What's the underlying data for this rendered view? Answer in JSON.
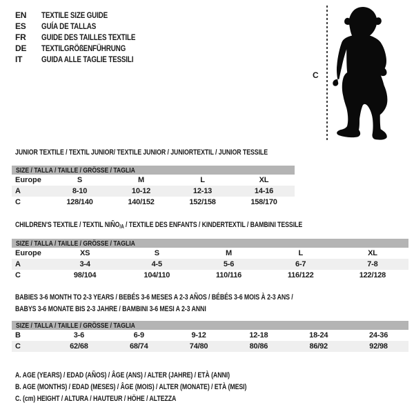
{
  "colors": {
    "text": "#1a1a1a",
    "table_header_bg": "#b4b4b4",
    "row_alt_bg": "#efefef",
    "silhouette": "#0a0a0a",
    "dash_line": "#3a3a3a"
  },
  "languages": [
    {
      "code": "EN",
      "label": "TEXTILE SIZE GUIDE"
    },
    {
      "code": "ES",
      "label": "GUÍA DE TALLAS"
    },
    {
      "code": "FR",
      "label": "GUIDE DES TAILLES TEXTILE"
    },
    {
      "code": "DE",
      "label": "TEXTILGRÖßENFÜHRUNG"
    },
    {
      "code": "IT",
      "label": "GUIDA ALLE TAGLIE TESSILI"
    }
  ],
  "figure": {
    "measure_label": "C",
    "silhouette": "toddler-standing"
  },
  "sections": [
    {
      "heading": {
        "pre": "JUNIOR TEXTILE / TEXTIL JUNIOR/ TEXTILE JUNIOR / JUNIORTEXTIL / JUNIOR TESSILE",
        "sub": "",
        "post": ""
      },
      "table": {
        "size_header": "SIZE / TALLA / TAILLE / GRÖSSE / TAGLIA",
        "rows": [
          {
            "label": "Europe",
            "cells": [
              "S",
              "M",
              "L",
              "XL"
            ]
          },
          {
            "label": "A",
            "cells": [
              "8-10",
              "10-12",
              "12-13",
              "14-16"
            ]
          },
          {
            "label": "C",
            "cells": [
              "128/140",
              "140/152",
              "152/158",
              "158/170"
            ]
          }
        ]
      }
    },
    {
      "heading": {
        "pre": "CHILDREN'S TEXTILE / TEXTIL NIÑO",
        "sub": "/A",
        "post": " / TEXTILE DES ENFANTS / KINDERTEXTIL / BAMBINI TESSILE"
      },
      "table": {
        "size_header": "SIZE / TALLA / TAILLE / GRÖSSE / TAGLIA",
        "rows": [
          {
            "label": "Europe",
            "cells": [
              "XS",
              "S",
              "M",
              "L",
              "XL"
            ]
          },
          {
            "label": "A",
            "cells": [
              "3-4",
              "4-5",
              "5-6",
              "6-7",
              "7-8"
            ]
          },
          {
            "label": "C",
            "cells": [
              "98/104",
              "104/110",
              "110/116",
              "116/122",
              "122/128"
            ]
          }
        ]
      }
    },
    {
      "heading": {
        "pre": "BABIES 3-6 MONTH TO 2-3 YEARS / BEBÉS 3-6 MESES A 2-3 AÑOS / BÉBÉS 3-6 MOIS À 2-3 ANS /",
        "sub": "",
        "post": ""
      },
      "heading_line2": "BABYS 3-6 MONATE BIS 2-3 JAHRE / BAMBINI 3-6 MESI A 2-3 ANNI",
      "table": {
        "size_header": "SIZE / TALLA / TAILLE / GRÖSSE / TAGLIA",
        "rows": [
          {
            "label": "B",
            "cells": [
              "3-6",
              "6-9",
              "9-12",
              "12-18",
              "18-24",
              "24-36"
            ]
          },
          {
            "label": "C",
            "cells": [
              "62/68",
              "68/74",
              "74/80",
              "80/86",
              "86/92",
              "92/98"
            ]
          }
        ]
      }
    }
  ],
  "legend": [
    "A. AGE (YEARS) / EDAD (AÑOS) / ÂGE (ANS) / ALTER (JAHRE) / ETÀ (ANNI)",
    "B. AGE (MONTHS) / EDAD (MESES) / ÂGE (MOIS) / ALTER (MONATE) / ETÀ (MESI)",
    "C. (cm) HEIGHT / ALTURA / HAUTEUR / HÖHE / ALTEZZA"
  ]
}
